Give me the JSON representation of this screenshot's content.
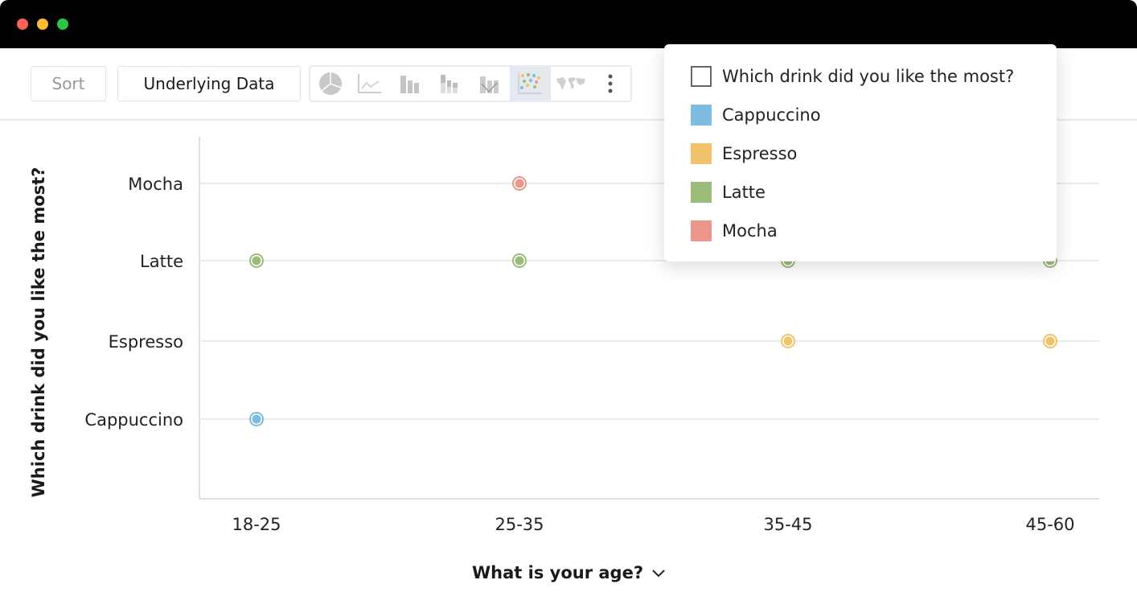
{
  "toolbar": {
    "sort_label": "Sort",
    "underlying_label": "Underlying Data",
    "chart_types": [
      "pie-chart-icon",
      "line-chart-icon",
      "bar-chart-icon",
      "stacked-bar-icon",
      "combo-chart-icon",
      "scatter-chart-icon",
      "map-chart-icon",
      "more-icon"
    ],
    "active_chart_type": "scatter-chart-icon"
  },
  "chart_data": {
    "type": "scatter",
    "xlabel": "What is your age?",
    "ylabel": "Which drink did you like the most?",
    "categories": [
      "18-25",
      "25-35",
      "35-45",
      "45-60"
    ],
    "y_categories": [
      "Cappuccino",
      "Espresso",
      "Latte",
      "Mocha"
    ],
    "grid": true,
    "legend_placement": "top-right",
    "legend_title": "Which drink did you like the most?",
    "series": [
      {
        "name": "Cappuccino",
        "color": "#7dbbe1",
        "points": [
          {
            "x": "18-25",
            "y": "Cappuccino"
          }
        ]
      },
      {
        "name": "Espresso",
        "color": "#f3c36b",
        "points": [
          {
            "x": "35-45",
            "y": "Espresso"
          },
          {
            "x": "45-60",
            "y": "Espresso"
          }
        ]
      },
      {
        "name": "Latte",
        "color": "#9abb7a",
        "points": [
          {
            "x": "18-25",
            "y": "Latte"
          },
          {
            "x": "25-35",
            "y": "Latte"
          },
          {
            "x": "35-45",
            "y": "Latte"
          },
          {
            "x": "45-60",
            "y": "Latte"
          }
        ]
      },
      {
        "name": "Mocha",
        "color": "#eb958b",
        "points": [
          {
            "x": "25-35",
            "y": "Mocha"
          }
        ]
      }
    ]
  }
}
